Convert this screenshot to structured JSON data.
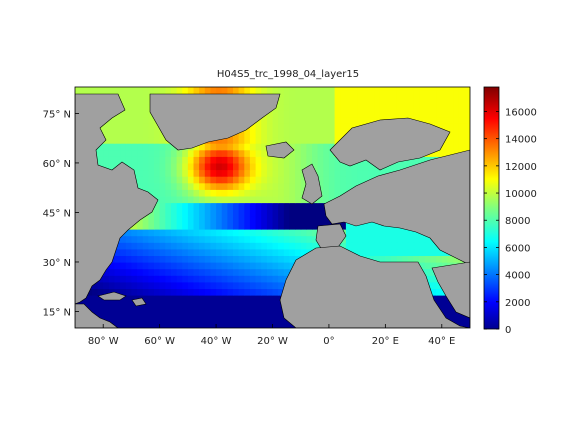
{
  "title": "H04S5_trc_1998_04_layer15",
  "map": {
    "lat_ticks": [
      {
        "value": 75,
        "label": "75° N"
      },
      {
        "value": 60,
        "label": "60° N"
      },
      {
        "value": 45,
        "label": "45° N"
      },
      {
        "value": 30,
        "label": "30° N"
      },
      {
        "value": 15,
        "label": "15° N"
      }
    ],
    "lon_ticks": [
      {
        "value": -80,
        "label": "80° W"
      },
      {
        "value": -60,
        "label": "60° W"
      },
      {
        "value": -40,
        "label": "40° W"
      },
      {
        "value": -20,
        "label": "20° W"
      },
      {
        "value": 0,
        "label": "0°"
      },
      {
        "value": 20,
        "label": "20° E"
      },
      {
        "value": 40,
        "label": "40° E"
      }
    ],
    "extent": {
      "lon": [
        -90,
        50
      ],
      "lat": [
        10,
        83
      ]
    },
    "land_color": "#a0a0a0",
    "nodata_color": "#ffffff",
    "colormap": "jet"
  },
  "colorbar": {
    "range": [
      0,
      17800
    ],
    "ticks": [
      "0",
      "2000",
      "4000",
      "6000",
      "8000",
      "10000",
      "12000",
      "14000",
      "16000"
    ]
  }
}
